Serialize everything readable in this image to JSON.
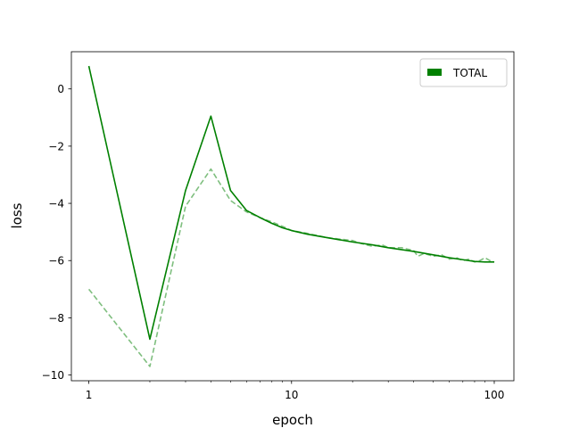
{
  "chart_data": {
    "type": "line",
    "title": "",
    "xlabel": "epoch",
    "ylabel": "loss",
    "xscale": "log",
    "xlim": [
      0.82,
      125
    ],
    "ylim": [
      -10.2,
      1.3
    ],
    "grid": false,
    "legend": {
      "placement": "top-right",
      "entries": [
        "TOTAL"
      ]
    },
    "colors": {
      "TOTAL": "#008000"
    },
    "x_ticks": [
      1,
      10,
      100
    ],
    "x_tick_labels": [
      "1",
      "10",
      "100"
    ],
    "y_ticks": [
      0,
      -2,
      -4,
      -6,
      -8,
      -10
    ],
    "y_tick_labels": [
      "0",
      "−2",
      "−4",
      "−6",
      "−8",
      "−10"
    ],
    "series": [
      {
        "name": "TOTAL",
        "style": "solid",
        "color": "#008000",
        "x": [
          1,
          2,
          3,
          4,
          5,
          6,
          7,
          8,
          9,
          10,
          12,
          15,
          20,
          25,
          30,
          40,
          50,
          60,
          70,
          80,
          90,
          100
        ],
        "y": [
          0.8,
          -8.75,
          -3.55,
          -0.95,
          -3.55,
          -4.25,
          -4.5,
          -4.7,
          -4.85,
          -4.95,
          -5.08,
          -5.2,
          -5.35,
          -5.45,
          -5.55,
          -5.68,
          -5.8,
          -5.9,
          -5.97,
          -6.03,
          -6.05,
          -6.05
        ]
      },
      {
        "style": "dashed",
        "color": "#008000",
        "opacity": 0.5,
        "x": [
          1,
          2,
          3,
          4,
          5,
          6,
          7,
          8,
          9,
          10,
          12,
          15,
          20,
          22,
          25,
          28,
          30,
          35,
          40,
          42,
          45,
          50,
          55,
          60,
          65,
          70,
          75,
          80,
          85,
          90,
          95,
          100
        ],
        "y": [
          -7.0,
          -9.7,
          -4.1,
          -2.8,
          -3.9,
          -4.3,
          -4.5,
          -4.65,
          -4.8,
          -4.95,
          -5.05,
          -5.2,
          -5.3,
          -5.4,
          -5.5,
          -5.45,
          -5.55,
          -5.55,
          -5.65,
          -5.85,
          -5.75,
          -5.85,
          -5.8,
          -5.95,
          -5.9,
          -6.0,
          -5.95,
          -6.05,
          -6.0,
          -5.9,
          -6.0,
          -6.05
        ]
      }
    ]
  }
}
